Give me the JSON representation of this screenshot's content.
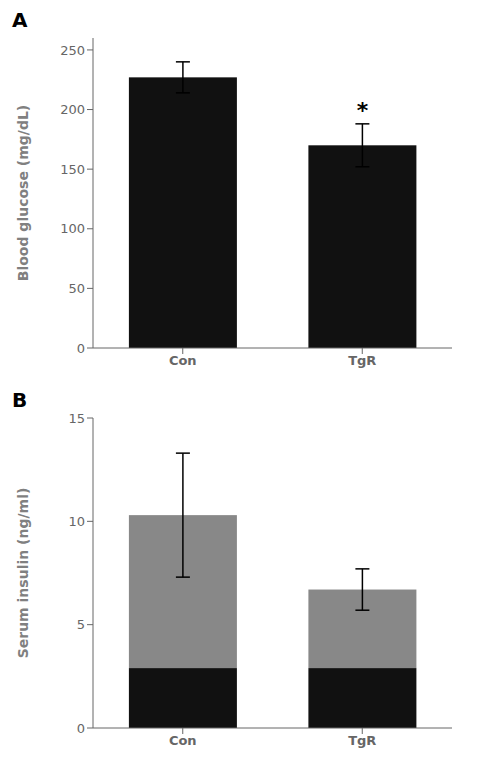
{
  "chart_data": [
    {
      "type": "bar",
      "title": "A",
      "categories": [
        "Con",
        "TgR"
      ],
      "values": [
        227,
        170
      ],
      "errors": [
        13,
        18
      ],
      "color": "#111111",
      "ylabel": "Blood glucose (mg/dL)",
      "ylim": [
        0,
        260
      ],
      "yticks": [
        0,
        50,
        100,
        150,
        200,
        250
      ],
      "annotations": [
        {
          "text": "*",
          "category": "TgR"
        }
      ]
    },
    {
      "type": "bar",
      "title": "B",
      "categories": [
        "Con",
        "TgR"
      ],
      "stacked": true,
      "series": [
        {
          "color": "#111111",
          "values": [
            2.9,
            2.9
          ]
        },
        {
          "color": "#888888",
          "values": [
            7.4,
            3.8
          ],
          "errors": [
            3.0,
            1.0
          ]
        }
      ],
      "ylabel": "Serum insulin (ng/ml)",
      "ylim": [
        0,
        15
      ],
      "yticks": [
        0,
        5,
        10,
        15
      ]
    }
  ]
}
